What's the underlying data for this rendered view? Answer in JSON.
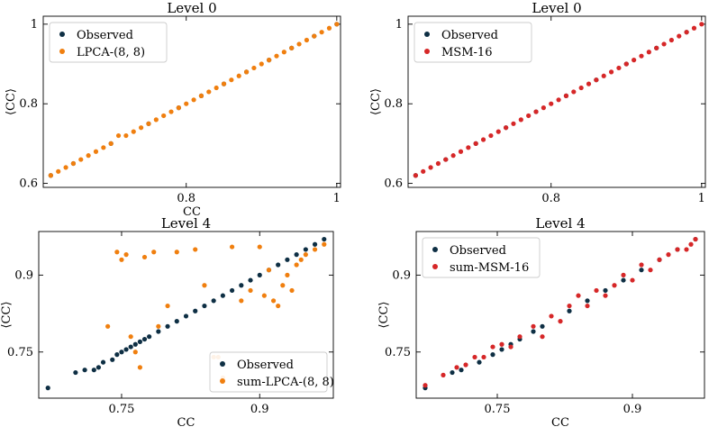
{
  "colors": {
    "observed": "#0e2f44",
    "lpca": "#f07f0f",
    "msm": "#d62728",
    "axis": "#000000"
  },
  "chart_data": [
    {
      "type": "scatter",
      "title": "Level 0",
      "xlabel": "CC",
      "ylabel": "⟨CC⟩",
      "xlim": [
        0.61,
        1.005
      ],
      "ylim": [
        0.59,
        1.02
      ],
      "xticks": [
        {
          "value": 0.8,
          "label": "0.8"
        },
        {
          "value": 1.0,
          "label": "1"
        }
      ],
      "yticks": [
        {
          "value": 0.6,
          "label": "0.6"
        },
        {
          "value": 0.8,
          "label": "0.8"
        },
        {
          "value": 1.0,
          "label": "1"
        }
      ],
      "legend": "top-left",
      "series": [
        {
          "name": "Observed",
          "color": "#0e2f44",
          "points": [
            [
              0.62,
              0.62
            ],
            [
              0.65,
              0.65
            ],
            [
              0.7,
              0.7
            ],
            [
              0.75,
              0.75
            ],
            [
              0.79,
              0.79
            ],
            [
              0.82,
              0.82
            ],
            [
              0.85,
              0.85
            ],
            [
              0.88,
              0.88
            ],
            [
              0.91,
              0.91
            ],
            [
              0.94,
              0.94
            ],
            [
              0.97,
              0.97
            ],
            [
              1.0,
              1.0
            ]
          ]
        },
        {
          "name": "LPCA-(8, 8)",
          "color": "#f07f0f",
          "points": [
            [
              0.62,
              0.62
            ],
            [
              0.63,
              0.63
            ],
            [
              0.64,
              0.64
            ],
            [
              0.65,
              0.65
            ],
            [
              0.66,
              0.66
            ],
            [
              0.67,
              0.67
            ],
            [
              0.68,
              0.68
            ],
            [
              0.69,
              0.69
            ],
            [
              0.7,
              0.7
            ],
            [
              0.71,
              0.72
            ],
            [
              0.72,
              0.72
            ],
            [
              0.73,
              0.73
            ],
            [
              0.74,
              0.74
            ],
            [
              0.75,
              0.75
            ],
            [
              0.76,
              0.76
            ],
            [
              0.77,
              0.77
            ],
            [
              0.78,
              0.78
            ],
            [
              0.79,
              0.79
            ],
            [
              0.8,
              0.8
            ],
            [
              0.81,
              0.81
            ],
            [
              0.82,
              0.82
            ],
            [
              0.83,
              0.83
            ],
            [
              0.84,
              0.84
            ],
            [
              0.85,
              0.85
            ],
            [
              0.86,
              0.86
            ],
            [
              0.87,
              0.87
            ],
            [
              0.88,
              0.88
            ],
            [
              0.89,
              0.89
            ],
            [
              0.9,
              0.9
            ],
            [
              0.91,
              0.91
            ],
            [
              0.92,
              0.92
            ],
            [
              0.93,
              0.93
            ],
            [
              0.94,
              0.94
            ],
            [
              0.95,
              0.95
            ],
            [
              0.96,
              0.96
            ],
            [
              0.97,
              0.97
            ],
            [
              0.98,
              0.98
            ],
            [
              0.99,
              0.99
            ],
            [
              1.0,
              1.0
            ]
          ]
        }
      ]
    },
    {
      "type": "scatter",
      "title": "Level 0",
      "xlabel": "",
      "ylabel": "⟨CC⟩",
      "xlim": [
        0.61,
        1.005
      ],
      "ylim": [
        0.59,
        1.02
      ],
      "xticks": [
        {
          "value": 0.8,
          "label": "0.8"
        },
        {
          "value": 1.0,
          "label": "1"
        }
      ],
      "yticks": [
        {
          "value": 0.6,
          "label": "0.6"
        },
        {
          "value": 0.8,
          "label": "0.8"
        },
        {
          "value": 1.0,
          "label": "1"
        }
      ],
      "legend": "top-left",
      "series": [
        {
          "name": "Observed",
          "color": "#0e2f44",
          "points": [
            [
              0.62,
              0.62
            ],
            [
              0.66,
              0.66
            ],
            [
              0.7,
              0.7
            ],
            [
              0.74,
              0.74
            ],
            [
              0.78,
              0.78
            ],
            [
              0.82,
              0.82
            ],
            [
              0.86,
              0.86
            ],
            [
              0.9,
              0.9
            ],
            [
              0.94,
              0.94
            ],
            [
              0.98,
              0.98
            ]
          ]
        },
        {
          "name": "MSM-16",
          "color": "#d62728",
          "points": [
            [
              0.62,
              0.62
            ],
            [
              0.63,
              0.63
            ],
            [
              0.64,
              0.64
            ],
            [
              0.65,
              0.65
            ],
            [
              0.66,
              0.66
            ],
            [
              0.67,
              0.67
            ],
            [
              0.68,
              0.68
            ],
            [
              0.69,
              0.69
            ],
            [
              0.7,
              0.7
            ],
            [
              0.71,
              0.71
            ],
            [
              0.72,
              0.72
            ],
            [
              0.73,
              0.73
            ],
            [
              0.74,
              0.74
            ],
            [
              0.75,
              0.75
            ],
            [
              0.76,
              0.76
            ],
            [
              0.77,
              0.77
            ],
            [
              0.78,
              0.78
            ],
            [
              0.79,
              0.79
            ],
            [
              0.8,
              0.8
            ],
            [
              0.81,
              0.81
            ],
            [
              0.82,
              0.82
            ],
            [
              0.83,
              0.83
            ],
            [
              0.84,
              0.84
            ],
            [
              0.85,
              0.85
            ],
            [
              0.86,
              0.86
            ],
            [
              0.87,
              0.87
            ],
            [
              0.88,
              0.88
            ],
            [
              0.89,
              0.89
            ],
            [
              0.9,
              0.9
            ],
            [
              0.91,
              0.91
            ],
            [
              0.92,
              0.92
            ],
            [
              0.93,
              0.93
            ],
            [
              0.94,
              0.94
            ],
            [
              0.95,
              0.95
            ],
            [
              0.96,
              0.96
            ],
            [
              0.97,
              0.97
            ],
            [
              0.98,
              0.98
            ],
            [
              0.99,
              0.99
            ],
            [
              1.0,
              1.0
            ]
          ]
        }
      ]
    },
    {
      "type": "scatter",
      "title": "Level 4",
      "xlabel": "CC",
      "ylabel": "⟨CC⟩",
      "xlim": [
        0.66,
        0.98
      ],
      "ylim": [
        0.66,
        0.985
      ],
      "xticks": [
        {
          "value": 0.75,
          "label": "0.75"
        },
        {
          "value": 0.9,
          "label": "0.9"
        }
      ],
      "yticks": [
        {
          "value": 0.75,
          "label": "0.75"
        },
        {
          "value": 0.9,
          "label": "0.9"
        }
      ],
      "legend": "bottom-right",
      "series": [
        {
          "name": "Observed",
          "color": "#0e2f44",
          "points": [
            [
              0.67,
              0.68
            ],
            [
              0.7,
              0.71
            ],
            [
              0.71,
              0.715
            ],
            [
              0.72,
              0.715
            ],
            [
              0.725,
              0.72
            ],
            [
              0.73,
              0.73
            ],
            [
              0.74,
              0.735
            ],
            [
              0.745,
              0.745
            ],
            [
              0.75,
              0.75
            ],
            [
              0.755,
              0.755
            ],
            [
              0.76,
              0.76
            ],
            [
              0.765,
              0.765
            ],
            [
              0.77,
              0.77
            ],
            [
              0.775,
              0.775
            ],
            [
              0.78,
              0.78
            ],
            [
              0.79,
              0.79
            ],
            [
              0.8,
              0.8
            ],
            [
              0.81,
              0.81
            ],
            [
              0.82,
              0.82
            ],
            [
              0.83,
              0.83
            ],
            [
              0.84,
              0.84
            ],
            [
              0.85,
              0.85
            ],
            [
              0.86,
              0.86
            ],
            [
              0.87,
              0.87
            ],
            [
              0.88,
              0.88
            ],
            [
              0.89,
              0.89
            ],
            [
              0.9,
              0.9
            ],
            [
              0.91,
              0.91
            ],
            [
              0.92,
              0.92
            ],
            [
              0.93,
              0.93
            ],
            [
              0.94,
              0.94
            ],
            [
              0.95,
              0.95
            ],
            [
              0.96,
              0.96
            ],
            [
              0.97,
              0.97
            ]
          ]
        },
        {
          "name": "sum-LPCA-(8, 8)",
          "color": "#f07f0f",
          "points": [
            [
              0.735,
              0.8
            ],
            [
              0.745,
              0.945
            ],
            [
              0.75,
              0.93
            ],
            [
              0.755,
              0.94
            ],
            [
              0.76,
              0.78
            ],
            [
              0.765,
              0.75
            ],
            [
              0.77,
              0.72
            ],
            [
              0.775,
              0.935
            ],
            [
              0.785,
              0.945
            ],
            [
              0.79,
              0.8
            ],
            [
              0.8,
              0.84
            ],
            [
              0.81,
              0.945
            ],
            [
              0.83,
              0.95
            ],
            [
              0.84,
              0.88
            ],
            [
              0.85,
              0.74
            ],
            [
              0.855,
              0.74
            ],
            [
              0.86,
              0.7
            ],
            [
              0.87,
              0.955
            ],
            [
              0.88,
              0.85
            ],
            [
              0.89,
              0.87
            ],
            [
              0.9,
              0.955
            ],
            [
              0.905,
              0.86
            ],
            [
              0.91,
              0.91
            ],
            [
              0.915,
              0.85
            ],
            [
              0.92,
              0.84
            ],
            [
              0.925,
              0.88
            ],
            [
              0.93,
              0.9
            ],
            [
              0.935,
              0.87
            ],
            [
              0.94,
              0.92
            ],
            [
              0.945,
              0.93
            ],
            [
              0.95,
              0.94
            ],
            [
              0.96,
              0.95
            ],
            [
              0.97,
              0.96
            ]
          ]
        }
      ]
    },
    {
      "type": "scatter",
      "title": "Level 4",
      "xlabel": "CC",
      "ylabel": "⟨CC⟩",
      "xlim": [
        0.66,
        0.98
      ],
      "ylim": [
        0.66,
        0.985
      ],
      "xticks": [
        {
          "value": 0.75,
          "label": "0.75"
        },
        {
          "value": 0.9,
          "label": "0.9"
        }
      ],
      "yticks": [
        {
          "value": 0.75,
          "label": "0.75"
        },
        {
          "value": 0.9,
          "label": "0.9"
        }
      ],
      "legend": "top-left",
      "series": [
        {
          "name": "Observed",
          "color": "#0e2f44",
          "points": [
            [
              0.67,
              0.68
            ],
            [
              0.7,
              0.71
            ],
            [
              0.71,
              0.715
            ],
            [
              0.73,
              0.73
            ],
            [
              0.745,
              0.745
            ],
            [
              0.755,
              0.755
            ],
            [
              0.765,
              0.765
            ],
            [
              0.775,
              0.775
            ],
            [
              0.79,
              0.79
            ],
            [
              0.8,
              0.8
            ],
            [
              0.83,
              0.83
            ],
            [
              0.85,
              0.85
            ],
            [
              0.87,
              0.87
            ],
            [
              0.89,
              0.89
            ],
            [
              0.91,
              0.91
            ],
            [
              0.93,
              0.93
            ],
            [
              0.95,
              0.95
            ],
            [
              0.97,
              0.97
            ]
          ]
        },
        {
          "name": "sum-MSM-16",
          "color": "#d62728",
          "points": [
            [
              0.67,
              0.685
            ],
            [
              0.69,
              0.705
            ],
            [
              0.705,
              0.72
            ],
            [
              0.715,
              0.725
            ],
            [
              0.725,
              0.74
            ],
            [
              0.735,
              0.74
            ],
            [
              0.745,
              0.76
            ],
            [
              0.755,
              0.765
            ],
            [
              0.765,
              0.76
            ],
            [
              0.775,
              0.78
            ],
            [
              0.79,
              0.8
            ],
            [
              0.8,
              0.78
            ],
            [
              0.81,
              0.82
            ],
            [
              0.82,
              0.81
            ],
            [
              0.83,
              0.84
            ],
            [
              0.84,
              0.86
            ],
            [
              0.85,
              0.84
            ],
            [
              0.86,
              0.87
            ],
            [
              0.87,
              0.86
            ],
            [
              0.88,
              0.88
            ],
            [
              0.89,
              0.9
            ],
            [
              0.9,
              0.89
            ],
            [
              0.91,
              0.92
            ],
            [
              0.92,
              0.91
            ],
            [
              0.93,
              0.93
            ],
            [
              0.94,
              0.94
            ],
            [
              0.95,
              0.95
            ],
            [
              0.96,
              0.95
            ],
            [
              0.965,
              0.96
            ],
            [
              0.97,
              0.97
            ]
          ]
        }
      ]
    }
  ]
}
